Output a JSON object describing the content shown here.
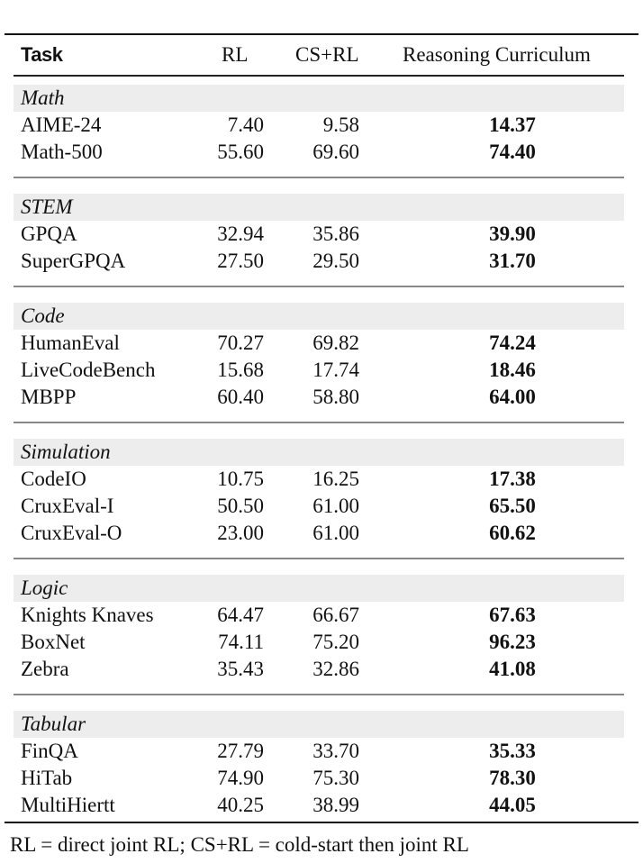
{
  "table": {
    "headers": [
      "Task",
      "RL",
      "CS+RL",
      "Reasoning Curriculum"
    ],
    "sections": [
      {
        "name": "Math",
        "rows": [
          {
            "task": "AIME-24",
            "rl": "7.40",
            "csrl": "9.58",
            "rc": "14.37"
          },
          {
            "task": "Math-500",
            "rl": "55.60",
            "csrl": "69.60",
            "rc": "74.40"
          }
        ]
      },
      {
        "name": "STEM",
        "rows": [
          {
            "task": "GPQA",
            "rl": "32.94",
            "csrl": "35.86",
            "rc": "39.90"
          },
          {
            "task": "SuperGPQA",
            "rl": "27.50",
            "csrl": "29.50",
            "rc": "31.70"
          }
        ]
      },
      {
        "name": "Code",
        "rows": [
          {
            "task": "HumanEval",
            "rl": "70.27",
            "csrl": "69.82",
            "rc": "74.24"
          },
          {
            "task": "LiveCodeBench",
            "rl": "15.68",
            "csrl": "17.74",
            "rc": "18.46"
          },
          {
            "task": "MBPP",
            "rl": "60.40",
            "csrl": "58.80",
            "rc": "64.00"
          }
        ]
      },
      {
        "name": "Simulation",
        "rows": [
          {
            "task": "CodeIO",
            "rl": "10.75",
            "csrl": "16.25",
            "rc": "17.38"
          },
          {
            "task": "CruxEval-I",
            "rl": "50.50",
            "csrl": "61.00",
            "rc": "65.50"
          },
          {
            "task": "CruxEval-O",
            "rl": "23.00",
            "csrl": "61.00",
            "rc": "60.62"
          }
        ]
      },
      {
        "name": "Logic",
        "rows": [
          {
            "task": "Knights Knaves",
            "rl": "64.47",
            "csrl": "66.67",
            "rc": "67.63"
          },
          {
            "task": "BoxNet",
            "rl": "74.11",
            "csrl": "75.20",
            "rc": "96.23"
          },
          {
            "task": "Zebra",
            "rl": "35.43",
            "csrl": "32.86",
            "rc": "41.08"
          }
        ]
      },
      {
        "name": "Tabular",
        "rows": [
          {
            "task": "FinQA",
            "rl": "27.79",
            "csrl": "33.70",
            "rc": "35.33"
          },
          {
            "task": "HiTab",
            "rl": "74.90",
            "csrl": "75.30",
            "rc": "78.30"
          },
          {
            "task": "MultiHiertt",
            "rl": "40.25",
            "csrl": "38.99",
            "rc": "44.05"
          }
        ]
      }
    ],
    "footnote": "RL = direct joint RL; CS+RL = cold-start then joint RL"
  }
}
